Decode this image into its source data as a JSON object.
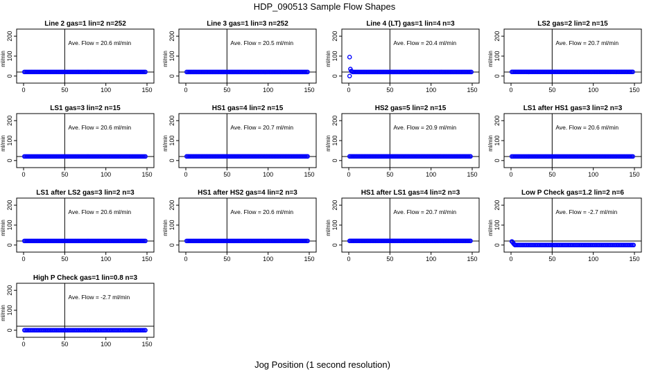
{
  "title": "HDP_090513  Sample Flow Shapes",
  "xlabel": "Jog Position (1 second resolution)",
  "chart_data": {
    "type": "scatter",
    "layout": "4 columns x 4 rows (13 panels)",
    "xlim": [
      0,
      150
    ],
    "ylim": [
      0,
      200
    ],
    "xticks": [
      0,
      50,
      100,
      150
    ],
    "yticks": [
      0,
      100,
      200
    ],
    "ylabel": "ml/min",
    "marker_color": "#0000ff",
    "marker": "open circle",
    "vline_x": 50,
    "hline_y": 20,
    "panels": [
      {
        "title": "Line 2 gas=1 lin=2 n=252",
        "annotation": "Ave. Flow =  20.6  ml/min",
        "flow": 20.6,
        "points": []
      },
      {
        "title": "Line 3 gas=1 lin=3 n=252",
        "annotation": "Ave. Flow =  20.5  ml/min",
        "flow": 20.5,
        "points": []
      },
      {
        "title": "Line 4 (LT) gas=1 lin=4 n=3",
        "annotation": "Ave. Flow =  20.4  ml/min",
        "flow": 20.4,
        "points": [
          [
            1,
            95
          ],
          [
            1,
            0
          ],
          [
            2,
            35
          ],
          [
            3,
            25
          ],
          [
            4,
            22
          ]
        ]
      },
      {
        "title": "LS2 gas=2 lin=2 n=15",
        "annotation": "Ave. Flow =  20.7  ml/min",
        "flow": 20.7,
        "points": []
      },
      {
        "title": "LS1 gas=3 lin=2 n=15",
        "annotation": "Ave. Flow =  20.6  ml/min",
        "flow": 20.6,
        "points": []
      },
      {
        "title": "HS1 gas=4 lin=2 n=15",
        "annotation": "Ave. Flow =  20.7  ml/min",
        "flow": 20.7,
        "points": []
      },
      {
        "title": "HS2 gas=5 lin=2 n=15",
        "annotation": "Ave. Flow =  20.9  ml/min",
        "flow": 20.9,
        "points": []
      },
      {
        "title": "LS1 after HS1 gas=3 lin=2 n=3",
        "annotation": "Ave. Flow =  20.6  ml/min",
        "flow": 20.6,
        "points": []
      },
      {
        "title": "LS1 after LS2 gas=3 lin=2 n=3",
        "annotation": "Ave. Flow =  20.6  ml/min",
        "flow": 20.6,
        "points": []
      },
      {
        "title": "HS1 after HS2 gas=4 lin=2 n=3",
        "annotation": "Ave. Flow =  20.6  ml/min",
        "flow": 20.6,
        "points": []
      },
      {
        "title": "HS1 after LS1 gas=4 lin=2 n=3",
        "annotation": "Ave. Flow =  20.7  ml/min",
        "flow": 20.7,
        "points": []
      },
      {
        "title": "Low P Check gas=1.2 lin=2 n=6",
        "annotation": "Ave. Flow =  -2.7  ml/min",
        "flow": -2.7,
        "points": [
          [
            1,
            18
          ],
          [
            2,
            15
          ],
          [
            3,
            8
          ],
          [
            4,
            3
          ],
          [
            5,
            0
          ]
        ]
      },
      {
        "title": "High P Check gas=1 lin=0.8 n=3",
        "annotation": "Ave. Flow =  -2.7  ml/min",
        "flow": -2.7,
        "points": []
      }
    ]
  }
}
